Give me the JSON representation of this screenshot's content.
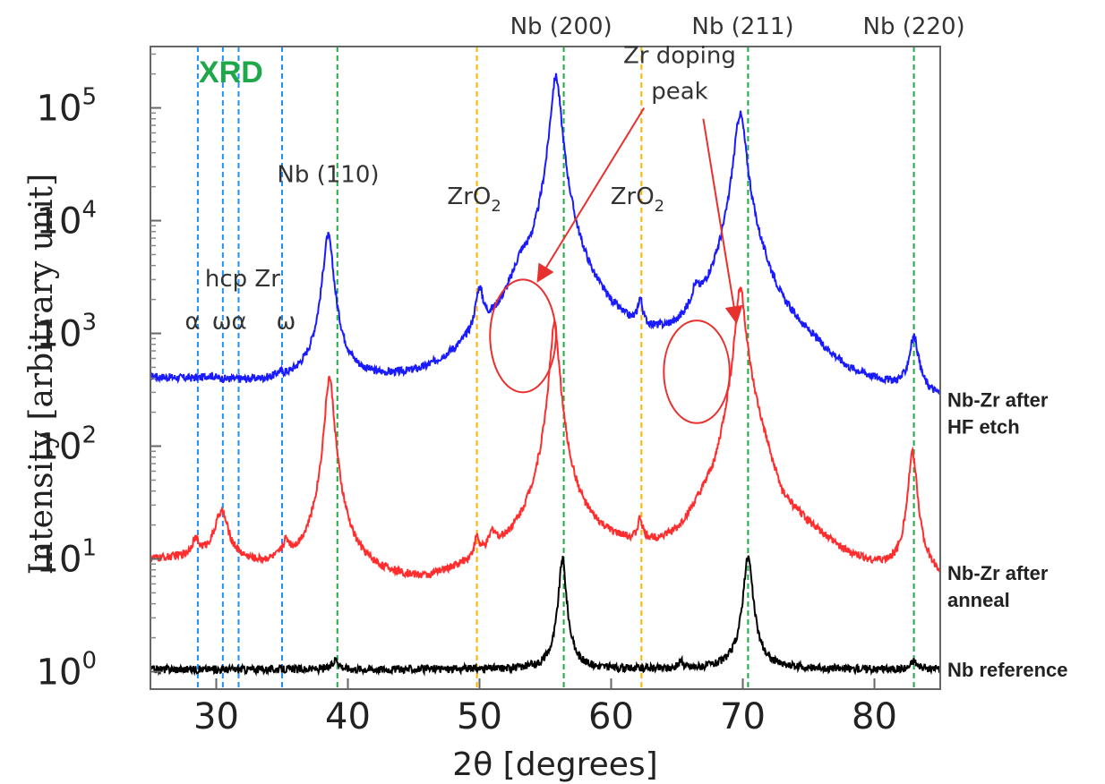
{
  "chart_data": {
    "type": "line",
    "title": "XRD",
    "xlabel": "2θ [degrees]",
    "ylabel": "Intensity [arbitrary unit]",
    "xlim": [
      25,
      85
    ],
    "ylim": [
      0.7,
      350000
    ],
    "yscale": "log",
    "grid": false,
    "x_ticks": [
      30,
      40,
      50,
      60,
      70,
      80
    ],
    "y_ticks": [
      {
        "value": 1,
        "base": "10",
        "exp": "0"
      },
      {
        "value": 10,
        "base": "10",
        "exp": "1"
      },
      {
        "value": 100,
        "base": "10",
        "exp": "2"
      },
      {
        "value": 1000,
        "base": "10",
        "exp": "3"
      },
      {
        "value": 10000,
        "base": "10",
        "exp": "4"
      },
      {
        "value": 100000,
        "base": "10",
        "exp": "5"
      }
    ],
    "series": [
      {
        "name": "Nb-Zr after HF etch",
        "color": "#1a1aff",
        "label_lines": [
          "Nb-Zr after",
          "HF etch"
        ],
        "baseline": [
          [
            25,
            380
          ],
          [
            35,
            300
          ],
          [
            38,
            300
          ],
          [
            46,
            220
          ],
          [
            50,
            330
          ],
          [
            53,
            700
          ],
          [
            58,
            700
          ],
          [
            62,
            420
          ],
          [
            65,
            450
          ],
          [
            68,
            1100
          ],
          [
            70,
            4000
          ],
          [
            73,
            800
          ],
          [
            78,
            260
          ],
          [
            85,
            190
          ]
        ],
        "peaks": [
          [
            29.5,
            30,
            0.5
          ],
          [
            34.8,
            35,
            0.3
          ],
          [
            38.5,
            7000,
            0.35
          ],
          [
            50.0,
            1500,
            0.3
          ],
          [
            53.2,
            1500,
            0.6
          ],
          [
            55.8,
            190000,
            0.35
          ],
          [
            62.2,
            850,
            0.2
          ],
          [
            66.4,
            750,
            0.3
          ],
          [
            69.8,
            85000,
            0.4
          ],
          [
            83.0,
            620,
            0.35
          ]
        ]
      },
      {
        "name": "Nb-Zr after anneal",
        "color": "#ff2d2d",
        "label_lines": [
          "Nb-Zr after",
          "anneal"
        ],
        "baseline": [
          [
            25,
            9.5
          ],
          [
            30,
            10
          ],
          [
            33,
            8
          ],
          [
            37,
            7
          ],
          [
            46,
            5
          ],
          [
            50,
            7
          ],
          [
            53,
            9
          ],
          [
            55,
            13
          ],
          [
            58,
            11
          ],
          [
            62,
            9
          ],
          [
            65,
            8.5
          ],
          [
            68,
            25
          ],
          [
            70,
            400
          ],
          [
            73,
            20
          ],
          [
            78,
            8
          ],
          [
            82,
            6
          ],
          [
            85,
            5.5
          ]
        ],
        "peaks": [
          [
            28.4,
            4,
            0.3
          ],
          [
            30.4,
            16,
            0.5
          ],
          [
            35.3,
            4,
            0.3
          ],
          [
            38.6,
            400,
            0.3
          ],
          [
            49.8,
            5,
            0.2
          ],
          [
            51.0,
            5,
            0.3
          ],
          [
            55.7,
            1200,
            0.3
          ],
          [
            62.2,
            8,
            0.2
          ],
          [
            69.8,
            2300,
            0.3
          ],
          [
            82.9,
            80,
            0.3
          ]
        ]
      },
      {
        "name": "Nb reference",
        "color": "#000000",
        "label_lines": [
          "Nb reference"
        ],
        "baseline": [
          [
            25,
            1.05
          ],
          [
            85,
            1.05
          ]
        ],
        "peaks": [
          [
            39.1,
            0.25,
            0.25
          ],
          [
            56.3,
            9,
            0.25
          ],
          [
            65.3,
            0.15,
            0.2
          ],
          [
            70.4,
            9.5,
            0.3
          ],
          [
            83.0,
            0.2,
            0.25
          ]
        ]
      }
    ],
    "reference_lines": [
      {
        "x": 28.6,
        "color": "#1e90ff"
      },
      {
        "x": 30.5,
        "color": "#1e90ff"
      },
      {
        "x": 31.7,
        "color": "#1e90ff"
      },
      {
        "x": 35.0,
        "color": "#1e90ff"
      },
      {
        "x": 39.2,
        "color": "#22aa44"
      },
      {
        "x": 49.8,
        "color": "#ffb300"
      },
      {
        "x": 56.4,
        "color": "#22aa44"
      },
      {
        "x": 62.3,
        "color": "#ffb300"
      },
      {
        "x": 70.4,
        "color": "#22aa44"
      },
      {
        "x": 83.0,
        "color": "#22aa44"
      }
    ],
    "peak_labels": [
      {
        "text": "Nb (110)",
        "x": 38.5,
        "y": 22000
      },
      {
        "text": "Nb (200)",
        "x": 56.2,
        "y": 170000000,
        "outside": true
      },
      {
        "text": "Nb (211)",
        "x": 70.0,
        "y": 170000000,
        "outside": true
      },
      {
        "text": "Nb (220)",
        "x": 83.0,
        "y": 170000000,
        "outside": true
      },
      {
        "text": "hcp Zr",
        "x": 32.0,
        "y": 2600
      },
      {
        "text": "α",
        "x": 28.2,
        "y": 1100
      },
      {
        "text": "ωα",
        "x": 31.0,
        "y": 1100
      },
      {
        "text": "ω",
        "x": 35.3,
        "y": 1100
      }
    ],
    "zro2_labels": [
      {
        "text": "ZrO",
        "sub": "2",
        "x": 49.6,
        "y": 14000
      },
      {
        "text": "ZrO",
        "sub": "2",
        "x": 62.0,
        "y": 14000
      }
    ],
    "annotation": {
      "lines": [
        "Zr doping",
        "peak"
      ],
      "x": 65.2,
      "y": 250000,
      "color": "#e8302e",
      "circles": [
        {
          "cx": 53.3,
          "cy": 1000,
          "rx": 2.5,
          "ry_top": 3000,
          "ry_bottom": 300
        },
        {
          "cx": 66.5,
          "cy": 500,
          "rx": 2.5,
          "ry_top": 1300,
          "ry_bottom": 160
        }
      ],
      "arrows": [
        {
          "from": [
            62.5,
            100000
          ],
          "to": [
            54.5,
            3000
          ]
        },
        {
          "from": [
            67.0,
            80000
          ],
          "to": [
            69.5,
            1300
          ]
        }
      ]
    }
  }
}
